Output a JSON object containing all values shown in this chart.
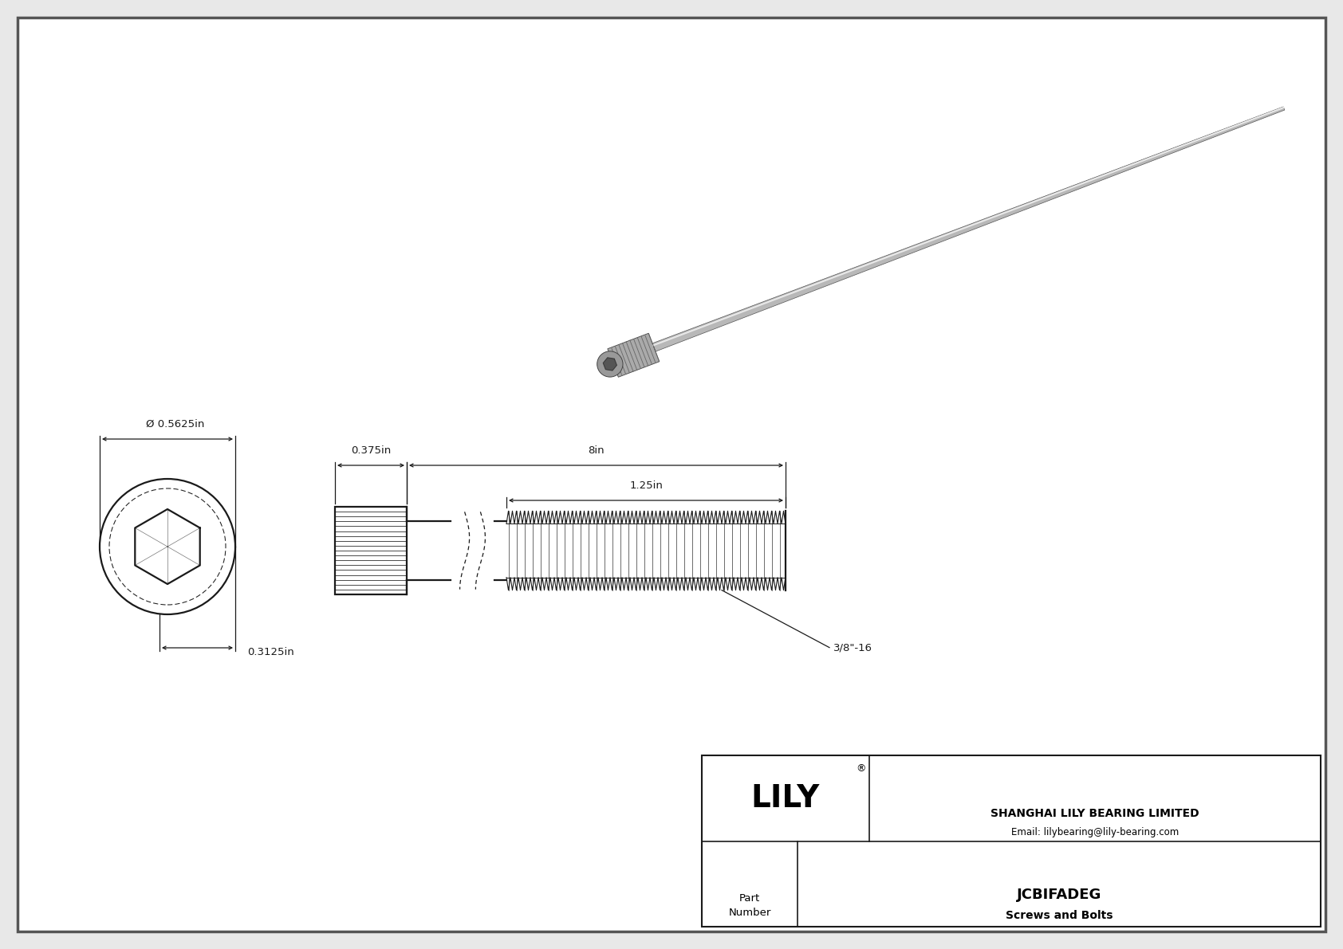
{
  "bg_color": "#e8e8e8",
  "drawing_bg": "#ffffff",
  "line_color": "#1a1a1a",
  "dim_color": "#1a1a1a",
  "title": "JCBIFADEG",
  "subtitle": "Screws and Bolts",
  "company": "SHANGHAI LILY BEARING LIMITED",
  "email": "Email: lilybearing@lily-bearing.com",
  "part_label": "Part\nNumber",
  "dim_od": "Ø 0.5625in",
  "dim_head_h": "0.3125in",
  "dim_head_w": "0.375in",
  "dim_total": "8in",
  "dim_thread": "1.25in",
  "dim_thread_label": "3/8\"-16",
  "border_color": "#555555",
  "border_lw": 2.5,
  "fig_w": 16.84,
  "fig_h": 11.91
}
